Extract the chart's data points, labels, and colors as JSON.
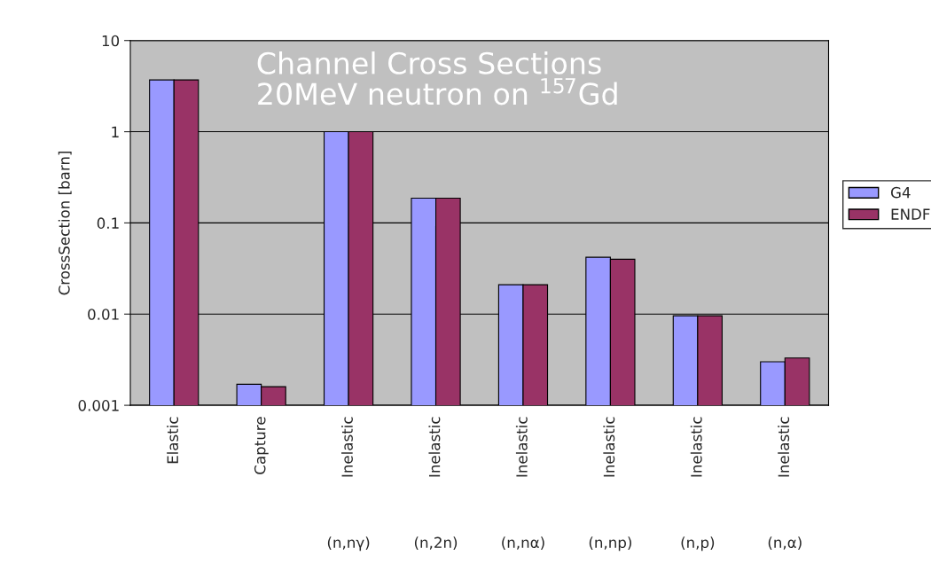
{
  "chart_data": {
    "type": "bar",
    "title": "Channel Cross Sections\n20MeV neutron on $^{157}$Gd",
    "ylabel": "CrossSection [barn]",
    "categories": [
      "Elastic",
      "Capture",
      "Inelastic\n(n,nγ)",
      "Inelastic\n(n,2n)",
      "Inelastic\n(n,nα)",
      "Inelastic\n(n,np)",
      "Inelastic\n(n,p)",
      "Inelastic\n(n,α)"
    ],
    "series": [
      {
        "name": "G4",
        "color": "#9999ff",
        "values": [
          3.7,
          0.0017,
          1.0,
          0.187,
          0.021,
          0.042,
          0.0096,
          0.003
        ]
      },
      {
        "name": "ENDF",
        "color": "#993366",
        "values": [
          3.7,
          0.0016,
          1.0,
          0.187,
          0.021,
          0.04,
          0.0096,
          0.0033
        ]
      }
    ],
    "log": true,
    "ylim": [
      0.001,
      10
    ],
    "yticks": [
      0.001,
      0.01,
      0.1,
      1,
      10
    ],
    "grid": "y",
    "legend": "right"
  }
}
